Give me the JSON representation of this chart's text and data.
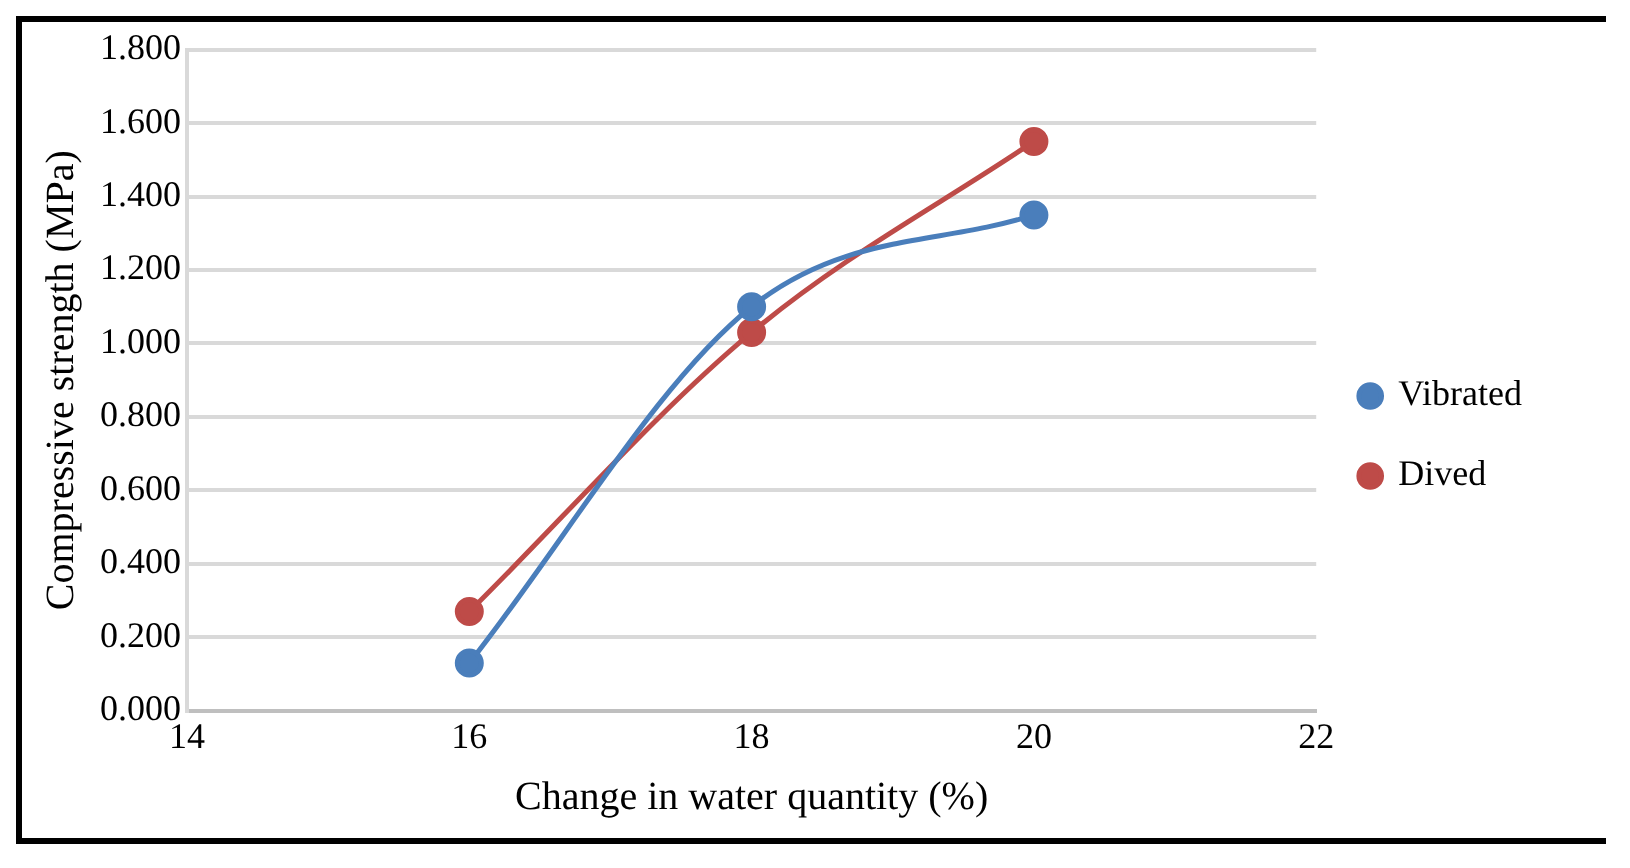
{
  "chart_data": {
    "type": "line",
    "xlabel": "Change in water quantity (%)",
    "ylabel": "Compressive strength (MPa)",
    "x": [
      16,
      18,
      20
    ],
    "series": [
      {
        "name": "Vibrated",
        "color": "#4a7ebb",
        "values": [
          0.13,
          1.1,
          1.35
        ]
      },
      {
        "name": "Dived",
        "color": "#be4b48",
        "values": [
          0.27,
          1.03,
          1.55
        ]
      }
    ],
    "xlim": [
      14,
      22
    ],
    "xticks": [
      14,
      16,
      18,
      20,
      22
    ],
    "ylim": [
      0,
      1.8
    ],
    "yticks": [
      {
        "value": 0,
        "label": "0.000"
      },
      {
        "value": 0.2,
        "label": "0.200"
      },
      {
        "value": 0.4,
        "label": "0.400"
      },
      {
        "value": 0.6,
        "label": "0.600"
      },
      {
        "value": 0.8,
        "label": "0.800"
      },
      {
        "value": 1.0,
        "label": "1.000"
      },
      {
        "value": 1.2,
        "label": "1.200"
      },
      {
        "value": 1.4,
        "label": "1.400"
      },
      {
        "value": 1.6,
        "label": "1.600"
      },
      {
        "value": 1.8,
        "label": "1.800"
      }
    ],
    "grid": "y",
    "legend": "right",
    "marker": "circle",
    "line_style": "solid"
  }
}
